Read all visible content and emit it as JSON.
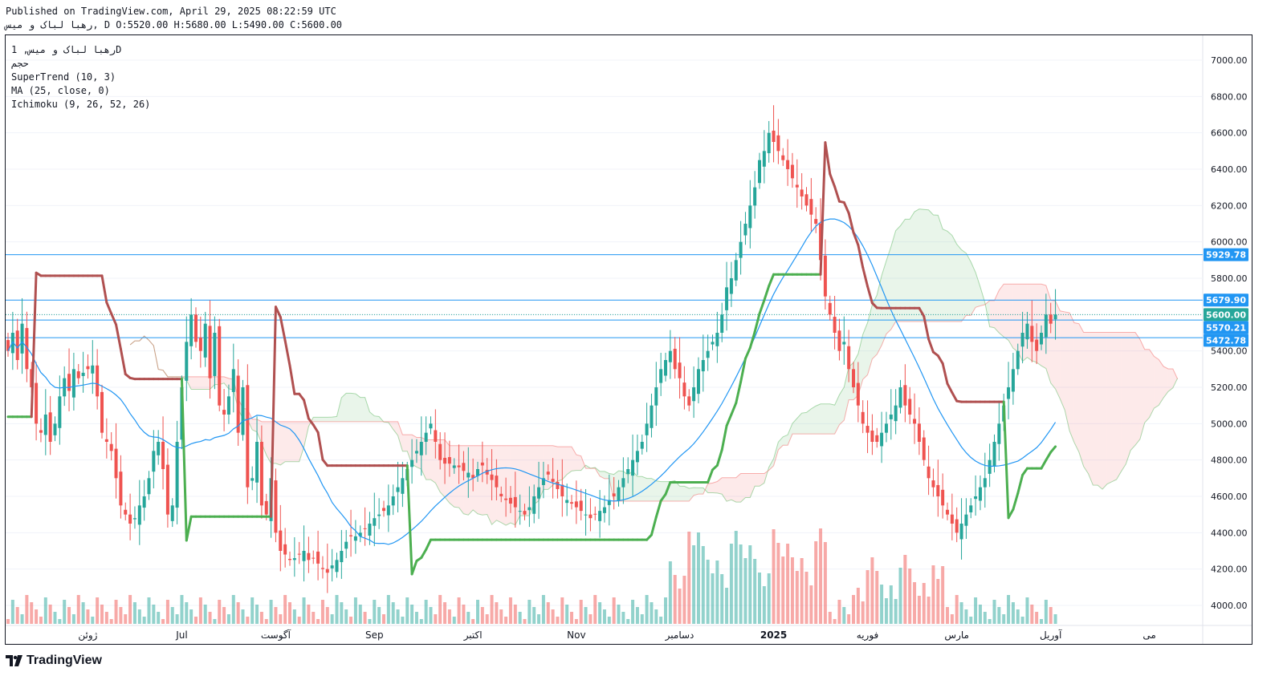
{
  "header": {
    "published_line": "Published on TradingView.com, April 29, 2025 08:22:59 UTC",
    "ohlc_line": "رهبا لباک و میس, D O:5520.00 H:5680.00 L:5490.00 C:5600.00"
  },
  "legend": {
    "symbol": "رهبا لباک و میس, 1D",
    "volume_label": "حجم",
    "supertrend": "SuperTrend (10, 3)",
    "ma": "MA (25, close, 0)",
    "ichimoku": "Ichimoku (9, 26, 52, 26)"
  },
  "brand": {
    "name": "TradingView"
  },
  "colors": {
    "up": "#26a69a",
    "down": "#ef5350",
    "supertrend_up": "#4caf50",
    "supertrend_down": "#b05050",
    "ma": "#2196f3",
    "level_line": "#2196f3",
    "tag_level": "#2196f3",
    "tag_close": "#26a69a"
  },
  "chart_data": {
    "type": "candlestick",
    "ylim": [
      3850,
      7150
    ],
    "y_ticks": [
      "7000.00",
      "6800.00",
      "6600.00",
      "6400.00",
      "6200.00",
      "6000.00",
      "5800.00",
      "5600.00",
      "5400.00",
      "5200.00",
      "5000.00",
      "4800.00",
      "4600.00",
      "4400.00",
      "4200.00",
      "4000.00"
    ],
    "x_labels": [
      {
        "label": "ژوئن",
        "i": 17
      },
      {
        "label": "Jul",
        "i": 37
      },
      {
        "label": "آگوست",
        "i": 57
      },
      {
        "label": "Sep",
        "i": 78
      },
      {
        "label": "اکتبر",
        "i": 99
      },
      {
        "label": "Nov",
        "i": 121
      },
      {
        "label": "دسامبر",
        "i": 143
      },
      {
        "label": "2025",
        "i": 163,
        "bold": true
      },
      {
        "label": "فوریه",
        "i": 183
      },
      {
        "label": "مارس",
        "i": 202
      },
      {
        "label": "آوریل",
        "i": 222
      },
      {
        "label": "می",
        "i": 243
      }
    ],
    "price_tags": [
      {
        "value": "5929.78",
        "y": 5929.78,
        "kind": "level"
      },
      {
        "value": "5679.90",
        "y": 5679.9,
        "kind": "level"
      },
      {
        "value": "5600.00",
        "y": 5600.0,
        "kind": "close"
      },
      {
        "value": "5570.21",
        "y": 5570.21,
        "kind": "level"
      },
      {
        "value": "5472.78",
        "y": 5472.78,
        "kind": "level"
      }
    ],
    "close": [
      5400,
      5500,
      5350,
      5550,
      5300,
      5200,
      5000,
      4950,
      5050,
      4900,
      5000,
      5150,
      5250,
      5180,
      5300,
      5250,
      5280,
      5300,
      5320,
      5150,
      4950,
      4900,
      4850,
      4700,
      4550,
      4500,
      4450,
      4480,
      4550,
      4600,
      4700,
      4850,
      4900,
      4750,
      4500,
      4550,
      4900,
      5200,
      5450,
      5600,
      5450,
      5400,
      5550,
      5250,
      5500,
      5100,
      5050,
      5150,
      5300,
      4950,
      5200,
      4650,
      4700,
      4900,
      4550,
      4500,
      4700,
      4400,
      4300,
      4280,
      4250,
      4260,
      4280,
      4300,
      4250,
      4260,
      4230,
      4200,
      4180,
      4220,
      4250,
      4300,
      4350,
      4380,
      4380,
      4400,
      4420,
      4450,
      4480,
      4500,
      4520,
      4550,
      4600,
      4650,
      4700,
      4750,
      4800,
      4850,
      4900,
      4950,
      5000,
      4900,
      4800,
      4780,
      4780,
      4770,
      4760,
      4740,
      4730,
      4700,
      4750,
      4770,
      4720,
      4690,
      4650,
      4600,
      4580,
      4560,
      4540,
      4520,
      4500,
      4540,
      4600,
      4650,
      4700,
      4720,
      4680,
      4640,
      4600,
      4580,
      4560,
      4540,
      4520,
      4500,
      4480,
      4500,
      4520,
      4540,
      4580,
      4600,
      4650,
      4700,
      4750,
      4800,
      4850,
      4900,
      5000,
      5100,
      5200,
      5300,
      5350,
      5400,
      5300,
      5250,
      5150,
      5100,
      5200,
      5300,
      5350,
      5400,
      5450,
      5500,
      5600,
      5750,
      5800,
      5900,
      6000,
      6100,
      6200,
      6300,
      6450,
      6500,
      6600,
      6550,
      6500,
      6450,
      6400,
      6350,
      6300,
      6250,
      6200,
      6150,
      6100,
      5900,
      5700,
      5600,
      5500,
      5400,
      5450,
      5300,
      5200,
      5100,
      5000,
      4950,
      4900,
      4900,
      4950,
      5000,
      5050,
      5100,
      5200,
      5100,
      5050,
      5000,
      4900,
      4800,
      4700,
      4650,
      4600,
      4550,
      4500,
      4450,
      4400,
      4450,
      4500,
      4550,
      4600,
      4650,
      4700,
      4800,
      4900,
      5000,
      5100,
      5200,
      5300,
      5400,
      5500,
      5550,
      5450,
      5400,
      5500,
      5600,
      5550,
      5600
    ],
    "supertrend": "computed from candle data (10, 3)",
    "moving_average": "computed from close (25)"
  }
}
